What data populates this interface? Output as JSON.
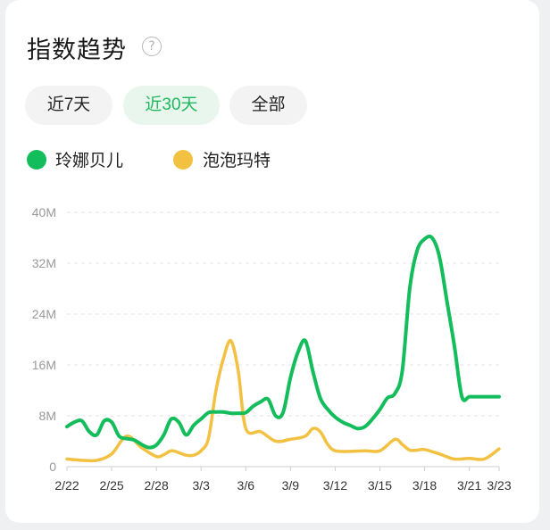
{
  "header": {
    "title": "指数趋势",
    "help_icon": "?"
  },
  "range_tabs": [
    {
      "label": "近7天",
      "active": false
    },
    {
      "label": "近30天",
      "active": true
    },
    {
      "label": "全部",
      "active": false
    }
  ],
  "colors": {
    "series_1": "#13bd5c",
    "series_2": "#f3c141",
    "active_tab_text": "#1fb85c",
    "axis_text": "#999999",
    "grid": "#e6e6e6"
  },
  "chart_data": {
    "type": "line",
    "title": "",
    "xlabel": "",
    "ylabel": "",
    "ylim": [
      0,
      40
    ],
    "y_unit": "M",
    "y_ticks": [
      "0",
      "8M",
      "16M",
      "24M",
      "32M",
      "40M"
    ],
    "x_ticks": [
      "2/22",
      "2/25",
      "2/28",
      "3/3",
      "3/6",
      "3/9",
      "3/12",
      "3/15",
      "3/18",
      "3/21",
      "3/23"
    ],
    "grid": true,
    "legend": "top-left",
    "series": [
      {
        "name": "玲娜贝儿",
        "x": [
          0,
          0.5,
          1,
          1.5,
          2,
          2.5,
          3,
          3.5,
          4,
          4.5,
          5,
          5.5,
          6,
          6.5,
          7,
          7.5,
          8,
          8.5,
          9,
          9.5,
          10,
          10.5,
          11,
          11.5,
          12,
          12.5,
          13,
          13.5,
          14,
          14.5,
          15,
          15.5,
          16,
          16.5,
          17,
          17.5,
          18,
          18.5,
          19,
          19.5,
          20,
          20.5,
          21,
          21.5,
          22,
          22.5,
          23,
          23.5,
          24,
          24.5,
          25,
          25.5,
          26,
          26.5,
          27,
          27.5,
          28,
          28.5,
          29
        ],
        "values": [
          6.3,
          7.0,
          7.2,
          5.5,
          5.0,
          7.2,
          7.0,
          4.8,
          4.4,
          4.2,
          3.5,
          3.0,
          3.4,
          5.0,
          7.5,
          7.0,
          5.0,
          6.5,
          7.5,
          8.5,
          8.6,
          8.6,
          8.4,
          8.4,
          8.5,
          9.5,
          10.2,
          10.6,
          8.0,
          8.5,
          14.0,
          18.0,
          19.8,
          15.0,
          10.8,
          9.0,
          7.8,
          7.0,
          6.5,
          6.0,
          6.3,
          7.5,
          9.0,
          10.8,
          11.5,
          15.0,
          28.0,
          34.0,
          35.8,
          36.0,
          33.0,
          26.0,
          19.0,
          11.0,
          11.0,
          11.0,
          11.0,
          11.0,
          11.0
        ]
      },
      {
        "name": "泡泡玛特",
        "x": [
          0,
          1,
          2,
          3,
          4,
          5,
          6,
          6.5,
          7,
          7.5,
          8,
          8.5,
          9,
          9.5,
          10,
          10.5,
          11,
          11.5,
          12,
          13,
          14,
          15,
          16,
          16.5,
          17,
          17.5,
          18,
          19,
          20,
          21,
          22,
          22.5,
          23,
          23.5,
          24,
          25,
          26,
          27,
          28,
          29
        ],
        "values": [
          1.2,
          1.0,
          1.0,
          2.0,
          4.8,
          3.0,
          1.6,
          1.9,
          2.5,
          2.2,
          1.8,
          1.8,
          2.5,
          4.5,
          12.0,
          17.0,
          19.8,
          15.0,
          6.0,
          5.5,
          4.0,
          4.3,
          4.8,
          6.0,
          5.5,
          3.5,
          2.5,
          2.4,
          2.5,
          2.5,
          4.3,
          3.5,
          2.6,
          2.6,
          2.7,
          2.0,
          1.2,
          1.3,
          1.2,
          2.8
        ]
      }
    ]
  }
}
